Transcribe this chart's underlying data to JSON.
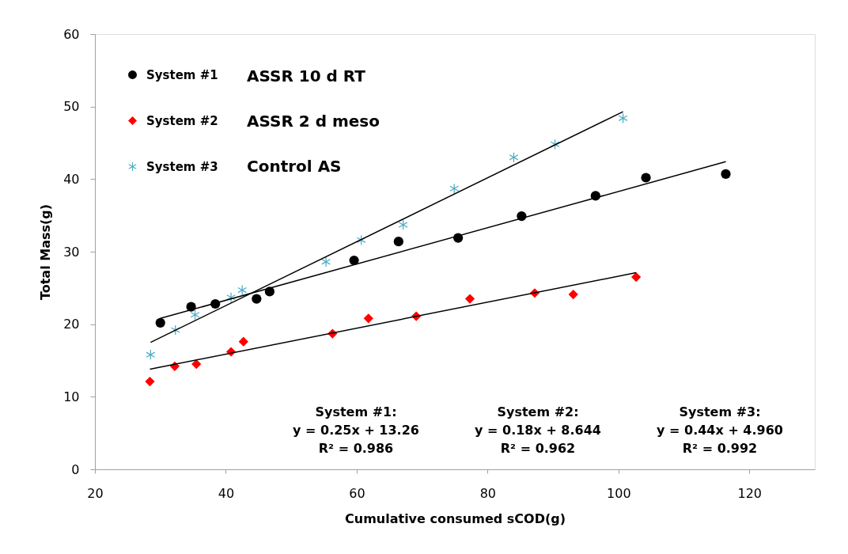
{
  "chart_data": {
    "type": "scatter",
    "xlabel": "Cumulative consumed sCOD(g)",
    "ylabel": "Total Mass(g)",
    "xlim": [
      20,
      130
    ],
    "xticks": [
      20,
      40,
      60,
      80,
      100,
      120
    ],
    "ylim": [
      0,
      60
    ],
    "yticks": [
      0,
      10,
      20,
      30,
      40,
      50,
      60
    ],
    "grid": false,
    "legend": "top left",
    "series": [
      {
        "name": "System #1",
        "color": "#000000",
        "marker": "circle",
        "x": [
          30.0,
          34.7,
          38.4,
          44.7,
          46.7,
          59.6,
          66.4,
          75.5,
          85.2,
          96.5,
          104.2,
          116.4
        ],
        "values": [
          20.2,
          22.4,
          22.8,
          23.5,
          24.5,
          28.8,
          31.4,
          31.9,
          34.9,
          37.7,
          40.2,
          40.7
        ]
      },
      {
        "name": "System #2",
        "color": "#ff0000",
        "marker": "diamond",
        "x": [
          28.4,
          32.2,
          35.5,
          40.8,
          42.7,
          56.3,
          61.8,
          69.1,
          77.3,
          87.2,
          93.1,
          102.7
        ],
        "values": [
          12.1,
          14.2,
          14.5,
          16.2,
          17.6,
          18.7,
          20.8,
          21.1,
          23.5,
          24.3,
          24.1,
          26.5
        ]
      },
      {
        "name": "System #3",
        "color": "#4bacc6",
        "marker": "cross",
        "x": [
          28.5,
          32.3,
          35.3,
          40.8,
          42.5,
          55.3,
          60.7,
          67.1,
          74.9,
          84.0,
          90.3,
          100.7
        ],
        "values": [
          15.8,
          19.2,
          21.3,
          23.7,
          24.7,
          28.6,
          31.6,
          33.7,
          38.7,
          43.0,
          44.8,
          48.4
        ]
      },
      {
        "type": "line",
        "color": "#000000",
        "x": [
          30.0,
          116.4
        ],
        "values": [
          20.8,
          42.4
        ]
      },
      {
        "type": "line",
        "color": "#000000",
        "x": [
          28.4,
          102.7
        ],
        "values": [
          13.8,
          27.1
        ]
      },
      {
        "type": "line",
        "color": "#000000",
        "x": [
          28.5,
          100.7
        ],
        "values": [
          17.5,
          49.3
        ]
      }
    ],
    "annotations": [
      "ASSR 10 d RT",
      "ASSR 2 d meso",
      "Control AS",
      "System #1:\ny = 0.25x + 13.26\nR² = 0.986",
      "System #2:\ny = 0.18x + 8.644\nR² = 0.962",
      "System #3:\ny = 0.44x + 4.960\nR² = 0.992"
    ]
  }
}
